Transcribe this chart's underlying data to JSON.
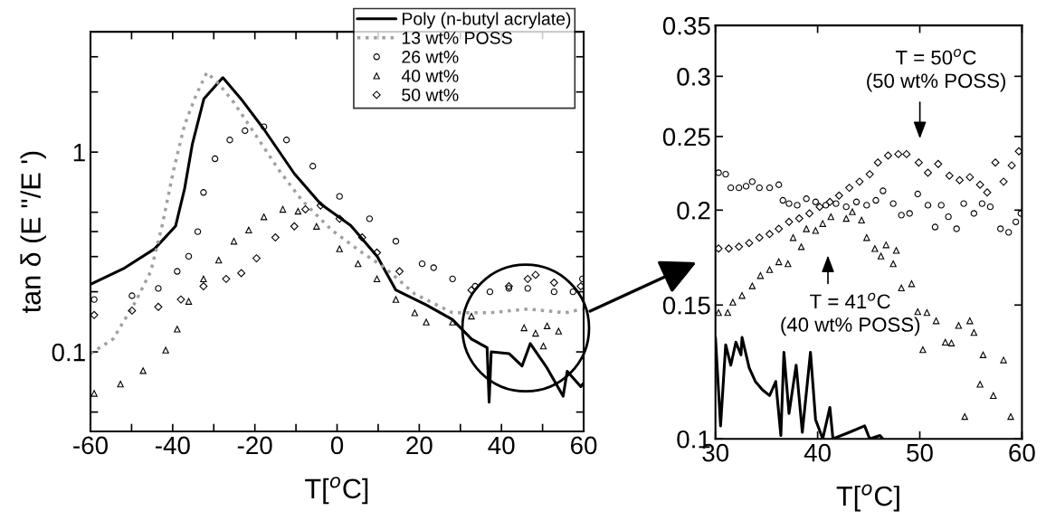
{
  "chart_data": [
    {
      "type": "scatter",
      "xlabel": "T[$^{o}$C]",
      "ylabel": "tan δ (E ''/E ')",
      "log": "y",
      "legend": "top right",
      "xlim": [
        -60,
        60
      ],
      "xticks": [
        -60,
        {
          "value": -50,
          "label": null
        },
        -40,
        {
          "value": -30,
          "label": null
        },
        -20,
        {
          "value": -10,
          "label": null
        },
        0,
        {
          "value": 10,
          "label": null
        },
        20,
        {
          "value": 30,
          "label": null
        },
        40,
        {
          "value": 50,
          "label": null
        },
        60
      ],
      "ylim": [
        0.04,
        4
      ],
      "yticks": [
        {
          "value": 0.05,
          "label": null
        },
        0.1,
        {
          "value": 0.2,
          "label": null
        },
        {
          "value": 0.3,
          "label": null
        },
        {
          "value": 0.4,
          "label": null
        },
        {
          "value": 0.5,
          "label": null
        },
        1,
        {
          "value": 2,
          "label": null
        },
        {
          "value": 3,
          "label": null
        }
      ],
      "series": [
        {
          "name": "Poly (n-butyl acrylate)",
          "type": "line",
          "line_style": "solid",
          "color": "#000000",
          "x": [
            -60,
            -51.7,
            -44.4,
            -39.3,
            -37.1,
            -35.2,
            -32.4,
            -27.8,
            -23.4,
            -17.9,
            -10.4,
            -4.0,
            3.3,
            9.8,
            14.3,
            21.7,
            28.1,
            32.7,
            36.5,
            37.0,
            37.5,
            41.9,
            45,
            47,
            51.1,
            55,
            56,
            59.3,
            60
          ],
          "values": [
            0.218,
            0.263,
            0.328,
            0.426,
            0.656,
            1.1,
            1.85,
            2.36,
            1.85,
            1.31,
            0.78,
            0.55,
            0.43,
            0.3,
            0.204,
            0.172,
            0.145,
            0.116,
            0.105,
            0.056,
            0.1,
            0.098,
            0.085,
            0.11,
            0.083,
            0.06,
            0.08,
            0.067,
            0.07
          ]
        },
        {
          "name": "13 wt% POSS",
          "type": "line",
          "line_style": "dotted",
          "color": "#a0a0a0",
          "x": [
            -60,
            -54.5,
            -49,
            -45.3,
            -42.6,
            -39.8,
            -37.1,
            -34.3,
            -31.7,
            -28.8,
            -25.1,
            -19.6,
            -14.1,
            -8.6,
            -1.3,
            6.1,
            11.6,
            18.9,
            28.1,
            37.2,
            46.4,
            55.6,
            59.7
          ],
          "values": [
            0.098,
            0.116,
            0.179,
            0.254,
            0.425,
            0.81,
            1.37,
            1.93,
            2.5,
            2.2,
            1.77,
            1.2,
            0.81,
            0.575,
            0.407,
            0.314,
            0.264,
            0.195,
            0.157,
            0.157,
            0.164,
            0.157,
            0.164
          ]
        },
        {
          "name": "26 wt%",
          "marker": "circle",
          "color": "#000000",
          "x": [
            -59.1,
            -49.9,
            -43.5,
            -38.9,
            -36.1,
            -33.9,
            -32.5,
            -29.7,
            -26.1,
            -22.4,
            -17.8,
            -12.3,
            -5.9,
            0.6,
            7.9,
            14.3,
            20.7,
            23.5,
            28.1,
            33.6,
            37.2,
            41.8,
            46.4,
            52.8,
            57.4,
            59.7
          ],
          "values": [
            0.183,
            0.191,
            0.208,
            0.253,
            0.301,
            0.4,
            0.628,
            0.926,
            1.15,
            1.28,
            1.34,
            1.15,
            0.85,
            0.6,
            0.464,
            0.358,
            0.276,
            0.264,
            0.232,
            0.213,
            0.2,
            0.208,
            0.208,
            0.2,
            0.2,
            0.232
          ]
        },
        {
          "name": "40 wt%",
          "marker": "triangle",
          "color": "#000000",
          "x": [
            -59.1,
            -52.7,
            -47.2,
            -41.7,
            -38.9,
            -36.1,
            -32.5,
            -28.8,
            -25.1,
            -21.5,
            -17.8,
            -13.2,
            -9.5,
            -5.0,
            0.6,
            5.1,
            9.7,
            14.3,
            18.9,
            21.7,
            28.1,
            32.7,
            45.5,
            48.3,
            50.2,
            51.1,
            53.9
          ],
          "values": [
            0.062,
            0.069,
            0.0806,
            0.102,
            0.13,
            0.179,
            0.232,
            0.288,
            0.358,
            0.407,
            0.474,
            0.517,
            0.506,
            0.425,
            0.328,
            0.276,
            0.232,
            0.183,
            0.157,
            0.141,
            0.141,
            0.151,
            0.132,
            0.124,
            0.107,
            0.135,
            0.127
          ]
        },
        {
          "name": "50 wt%",
          "marker": "diamond",
          "color": "#000000",
          "x": [
            -59.1,
            -49.9,
            -43.5,
            -38.0,
            -32.5,
            -27.0,
            -23.3,
            -19.6,
            -15.0,
            -10.4,
            -7.7,
            -4.0,
            0.6,
            6.1,
            9.7,
            15.2,
            32.7,
            41.8,
            46.4,
            48.3,
            52.8,
            59.3
          ],
          "values": [
            0.153,
            0.161,
            0.168,
            0.183,
            0.213,
            0.232,
            0.248,
            0.294,
            0.374,
            0.425,
            0.517,
            0.54,
            0.464,
            0.374,
            0.314,
            0.253,
            0.204,
            0.213,
            0.232,
            0.243,
            0.222,
            0.213
          ]
        }
      ]
    },
    {
      "type": "scatter",
      "xlabel": "T[$^{o}$C]",
      "log": "y",
      "xlim": [
        30,
        60
      ],
      "xticks": [
        30,
        40,
        50,
        60
      ],
      "ylim": [
        0.1,
        0.35
      ],
      "yticks": [
        0.1,
        0.15,
        0.2,
        0.25,
        0.3,
        0.35
      ],
      "annotations": [
        "T = 50$^{o}$C\n(50 wt% POSS)",
        "T = 41$^{o}$C\n(40 wt% POSS)"
      ],
      "series": [
        {
          "type": "line",
          "line_style": "solid",
          "color": "#000000",
          "x": [
            30.0,
            30.5,
            31.0,
            31.5,
            32.0,
            32.5,
            32.6,
            33.3,
            33.9,
            34.6,
            35.3,
            35.9,
            36.4,
            36.7,
            37.2,
            37.9,
            38.5,
            39.3,
            39.8,
            40.5,
            41.2,
            41.5,
            43.1,
            44.6,
            45.1,
            46.1,
            46.4
          ],
          "values": [
            0.136,
            0.104,
            0.133,
            0.125,
            0.134,
            0.129,
            0.136,
            0.124,
            0.119,
            0.116,
            0.114,
            0.119,
            0.101,
            0.13,
            0.108,
            0.125,
            0.102,
            0.13,
            0.106,
            0.1,
            0.11,
            0.1,
            0.102,
            0.104,
            0.1,
            0.101,
            0.1
          ]
        },
        {
          "marker": "circle",
          "color": "#000000",
          "x": [
            30.3,
            31.0,
            31.5,
            32.3,
            33.0,
            33.6,
            34.3,
            35.3,
            36.2,
            36.6,
            37.2,
            38.0,
            38.9,
            39.8,
            40.8,
            41.8,
            42.8,
            43.8,
            44.8,
            45.7,
            46.4,
            47.4,
            48.2,
            49.0,
            49.8,
            50.8,
            51.5,
            52.1,
            52.8,
            53.6,
            54.3,
            55.3,
            56.1,
            56.9,
            57.9,
            58.7,
            59.4,
            59.9
          ],
          "values": [
            0.224,
            0.223,
            0.214,
            0.214,
            0.215,
            0.218,
            0.214,
            0.214,
            0.216,
            0.206,
            0.204,
            0.203,
            0.207,
            0.205,
            0.203,
            0.204,
            0.202,
            0.205,
            0.203,
            0.206,
            0.212,
            0.204,
            0.197,
            0.198,
            0.21,
            0.203,
            0.19,
            0.203,
            0.196,
            0.189,
            0.204,
            0.198,
            0.204,
            0.202,
            0.189,
            0.187,
            0.193,
            0.198
          ]
        },
        {
          "marker": "triangle",
          "color": "#000000",
          "x": [
            30.3,
            31.2,
            31.7,
            32.6,
            33.6,
            34.4,
            35.3,
            36.2,
            37.1,
            37.6,
            38.4,
            38.9,
            39.8,
            40.5,
            41.3,
            42.8,
            43.4,
            44.3,
            44.8,
            45.6,
            46.2,
            46.7,
            47.4,
            47.7,
            48.2,
            49.2,
            49.8,
            50.3,
            50.7,
            51.6,
            52.5,
            53.1,
            53.8,
            54.4,
            54.9,
            55.3,
            55.9,
            56.2,
            57.2,
            58.2,
            58.9
          ],
          "values": [
            0.1466,
            0.1466,
            0.1513,
            0.1544,
            0.159,
            0.164,
            0.167,
            0.171,
            0.17,
            0.184,
            0.179,
            0.189,
            0.188,
            0.192,
            0.196,
            0.195,
            0.199,
            0.194,
            0.184,
            0.178,
            0.174,
            0.18,
            0.17,
            0.177,
            0.158,
            0.16,
            0.147,
            0.131,
            0.1466,
            0.143,
            0.134,
            0.1337,
            0.141,
            0.107,
            0.143,
            0.138,
            0.118,
            0.129,
            0.114,
            0.127,
            0.107
          ]
        },
        {
          "marker": "diamond",
          "color": "#000000",
          "x": [
            30.3,
            31.3,
            32.3,
            33.3,
            34.3,
            35.3,
            36.2,
            37.2,
            38.2,
            39.2,
            40.2,
            41.2,
            42.1,
            43.1,
            44.1,
            45.1,
            45.9,
            46.9,
            47.9,
            48.7,
            49.9,
            50.8,
            51.8,
            52.9,
            53.9,
            54.9,
            55.9,
            56.6,
            57.4,
            58.2,
            59.0,
            59.7
          ],
          "values": [
            0.178,
            0.178,
            0.179,
            0.181,
            0.184,
            0.186,
            0.189,
            0.193,
            0.195,
            0.198,
            0.202,
            0.205,
            0.209,
            0.214,
            0.218,
            0.223,
            0.231,
            0.236,
            0.237,
            0.237,
            0.231,
            0.224,
            0.23,
            0.222,
            0.219,
            0.221,
            0.216,
            0.211,
            0.231,
            0.218,
            0.229,
            0.239
          ]
        }
      ]
    }
  ]
}
